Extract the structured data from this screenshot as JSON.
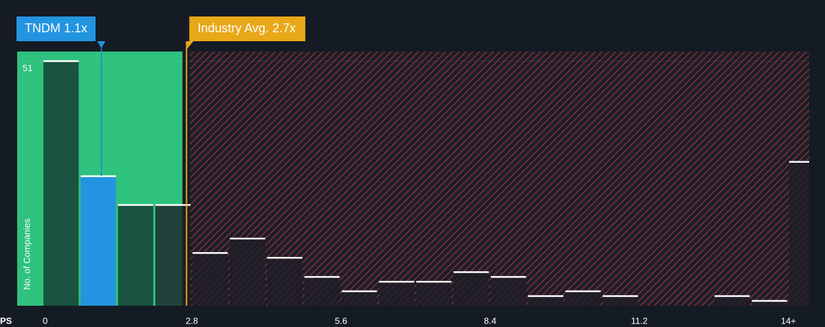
{
  "chart_data": {
    "type": "histogram",
    "x_label": "PS",
    "y_label": "No. of Companies",
    "bins": [
      0,
      0.7,
      1.4,
      2.1,
      2.8,
      3.5,
      4.2,
      4.9,
      5.6,
      6.3,
      7,
      7.7,
      8.4,
      9.1,
      9.8,
      10.5,
      11.2,
      11.9,
      12.6,
      13.3,
      14,
      14.7
    ],
    "counts": [
      51,
      27,
      21,
      21,
      11,
      14,
      10,
      6,
      3,
      5,
      5,
      7,
      6,
      2,
      3,
      2,
      0,
      0,
      2,
      1,
      30
    ],
    "highlight_bin": 1,
    "color": "#2394e0",
    "xlim": [
      -0.48,
      14.39
    ],
    "ylim": [
      0,
      51
    ],
    "xticks": [
      0,
      2.8,
      5.6,
      8.4,
      11.2,
      {
        "value": 14,
        "label": "14+"
      }
    ],
    "yticks": [
      51
    ],
    "company": {
      "label": "TNDM 1.1x",
      "value": 1.1,
      "color": "#2394e0"
    },
    "industry": {
      "label": "Industry Avg. 2.7x",
      "value": 2.7,
      "color": "#e8a818"
    }
  }
}
